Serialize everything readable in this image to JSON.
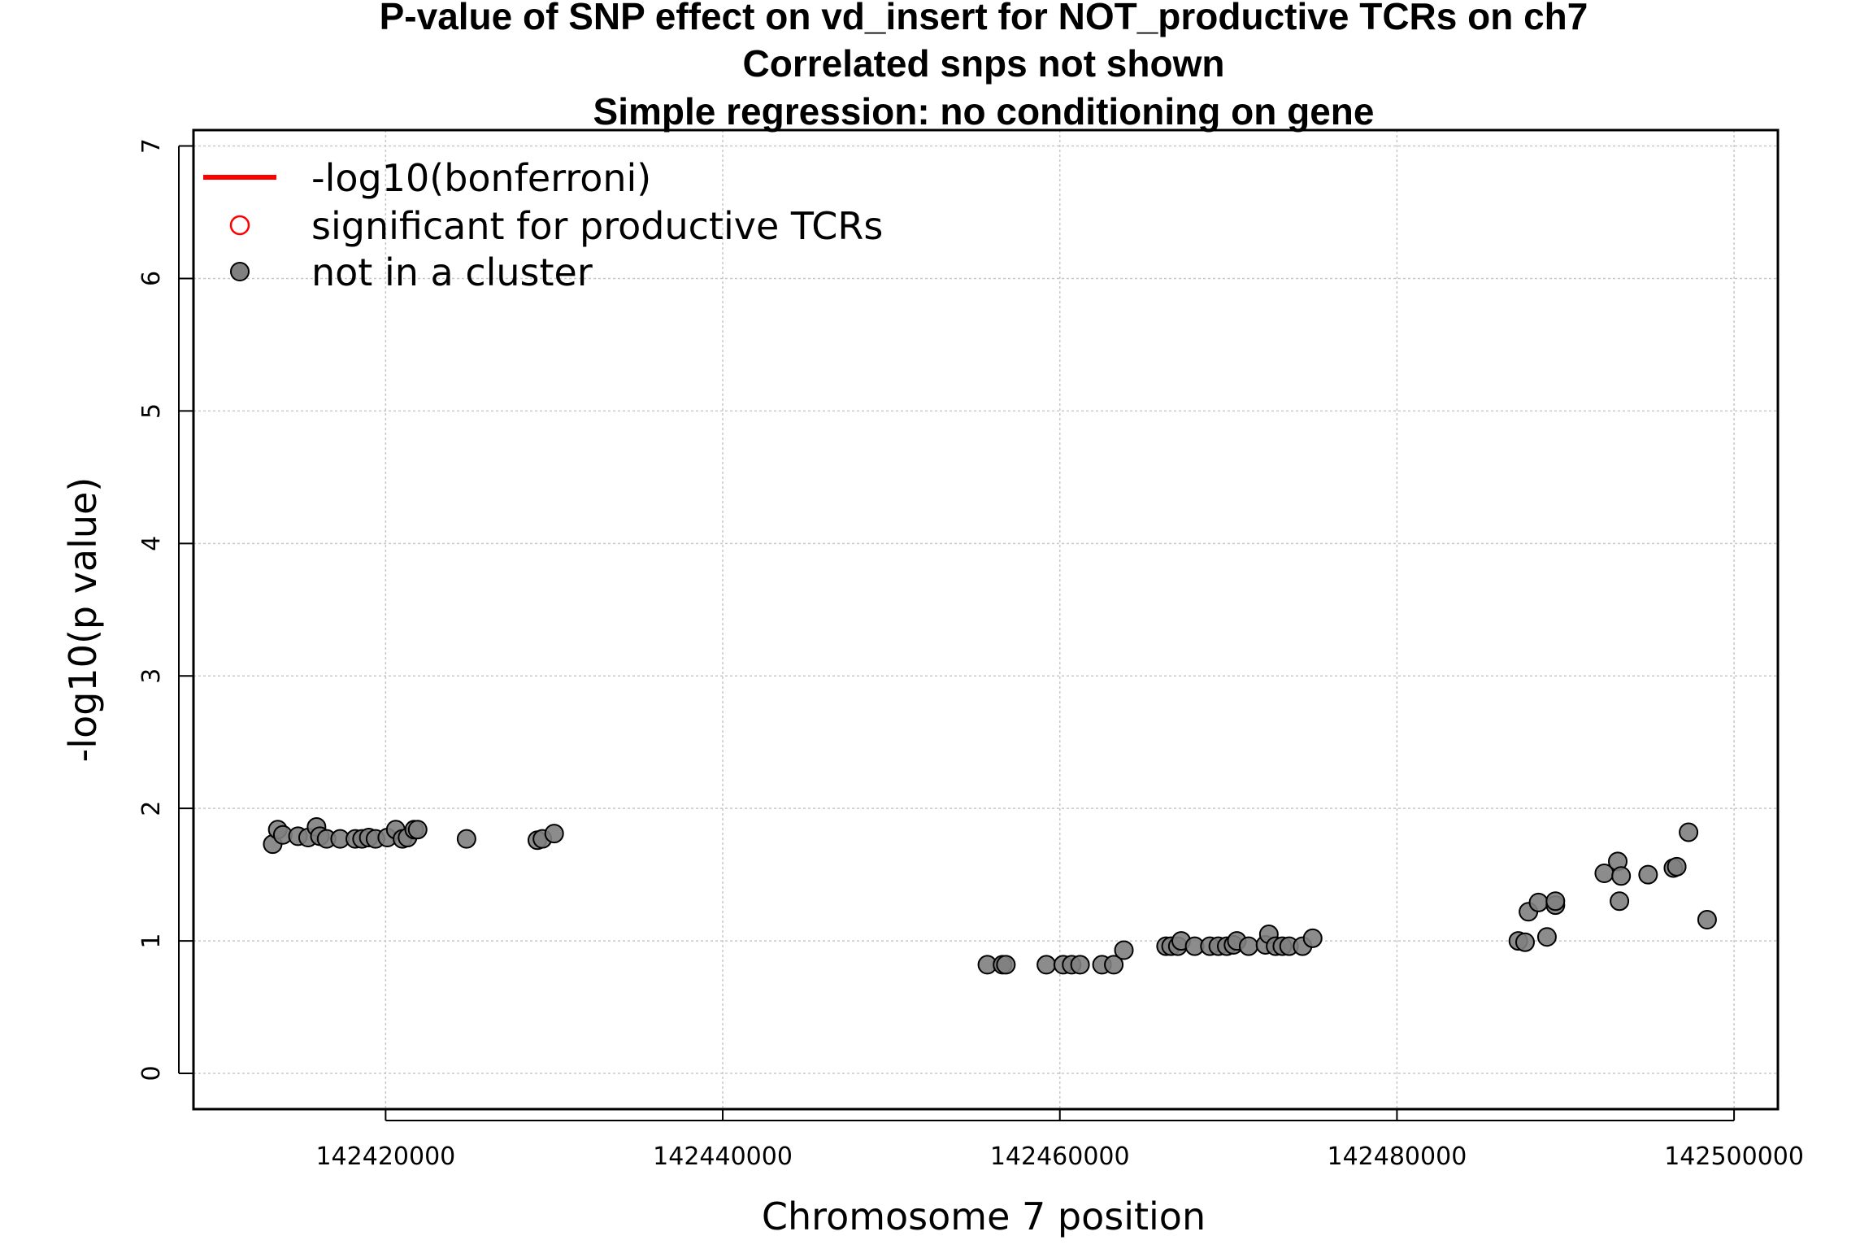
{
  "chart_data": {
    "type": "scatter",
    "title": [
      "P-value of SNP effect on vd_insert for NOT_productive TCRs on ch7",
      "Correlated snps not shown",
      "Simple regression: no conditioning on gene"
    ],
    "xlabel": "Chromosome 7 position",
    "ylabel": "-log10(p value)",
    "xlim": [
      142408600,
      142502600
    ],
    "ylim": [
      -0.27,
      7.12
    ],
    "xticks": [
      142420000,
      142440000,
      142460000,
      142480000,
      142500000
    ],
    "yticks": [
      0,
      1,
      2,
      3,
      4,
      5,
      6,
      7
    ],
    "grid": true,
    "legend_position": "top-left",
    "legend": [
      {
        "label": "-log10(bonferroni)",
        "symbol": "line",
        "color": "#ff0000"
      },
      {
        "label": "significant for productive TCRs",
        "symbol": "open-circle",
        "color": "#ff0000"
      },
      {
        "label": "not in a cluster",
        "symbol": "filled-circle",
        "color": "#808080"
      }
    ],
    "colors": {
      "point_fill": "#808080",
      "point_stroke": "#000000",
      "grid": "#c8c8c8"
    },
    "series": [
      {
        "name": "not in a cluster",
        "points": [
          [
            142413300,
            1.73
          ],
          [
            142413600,
            1.84
          ],
          [
            142413900,
            1.8
          ],
          [
            142414800,
            1.79
          ],
          [
            142415400,
            1.78
          ],
          [
            142415900,
            1.86
          ],
          [
            142416100,
            1.79
          ],
          [
            142416500,
            1.77
          ],
          [
            142417300,
            1.77
          ],
          [
            142418200,
            1.77
          ],
          [
            142418600,
            1.77
          ],
          [
            142419000,
            1.78
          ],
          [
            142419400,
            1.77
          ],
          [
            142420100,
            1.78
          ],
          [
            142420600,
            1.84
          ],
          [
            142421000,
            1.77
          ],
          [
            142421300,
            1.78
          ],
          [
            142421700,
            1.84
          ],
          [
            142421900,
            1.84
          ],
          [
            142424800,
            1.77
          ],
          [
            142429000,
            1.76
          ],
          [
            142429300,
            1.77
          ],
          [
            142430000,
            1.81
          ],
          [
            142455700,
            0.82
          ],
          [
            142456600,
            0.82
          ],
          [
            142456800,
            0.82
          ],
          [
            142459200,
            0.82
          ],
          [
            142460200,
            0.82
          ],
          [
            142460700,
            0.82
          ],
          [
            142461200,
            0.82
          ],
          [
            142462500,
            0.82
          ],
          [
            142463200,
            0.82
          ],
          [
            142463800,
            0.93
          ],
          [
            142466300,
            0.96
          ],
          [
            142466600,
            0.96
          ],
          [
            142467000,
            0.96
          ],
          [
            142467200,
            1.0
          ],
          [
            142468000,
            0.96
          ],
          [
            142468900,
            0.96
          ],
          [
            142469400,
            0.96
          ],
          [
            142469900,
            0.96
          ],
          [
            142470300,
            0.97
          ],
          [
            142470500,
            1.0
          ],
          [
            142471200,
            0.96
          ],
          [
            142472200,
            0.97
          ],
          [
            142472400,
            1.05
          ],
          [
            142472800,
            0.96
          ],
          [
            142473200,
            0.96
          ],
          [
            142473600,
            0.96
          ],
          [
            142474400,
            0.96
          ],
          [
            142475000,
            1.02
          ],
          [
            142487200,
            1.0
          ],
          [
            142487600,
            0.99
          ],
          [
            142487800,
            1.22
          ],
          [
            142488400,
            1.29
          ],
          [
            142488900,
            1.03
          ],
          [
            142489400,
            1.27
          ],
          [
            142489400,
            1.3
          ],
          [
            142492300,
            1.51
          ],
          [
            142493100,
            1.6
          ],
          [
            142493200,
            1.3
          ],
          [
            142493300,
            1.49
          ],
          [
            142494900,
            1.5
          ],
          [
            142496400,
            1.55
          ],
          [
            142496600,
            1.56
          ],
          [
            142497300,
            1.82
          ],
          [
            142498400,
            1.16
          ]
        ]
      }
    ]
  }
}
